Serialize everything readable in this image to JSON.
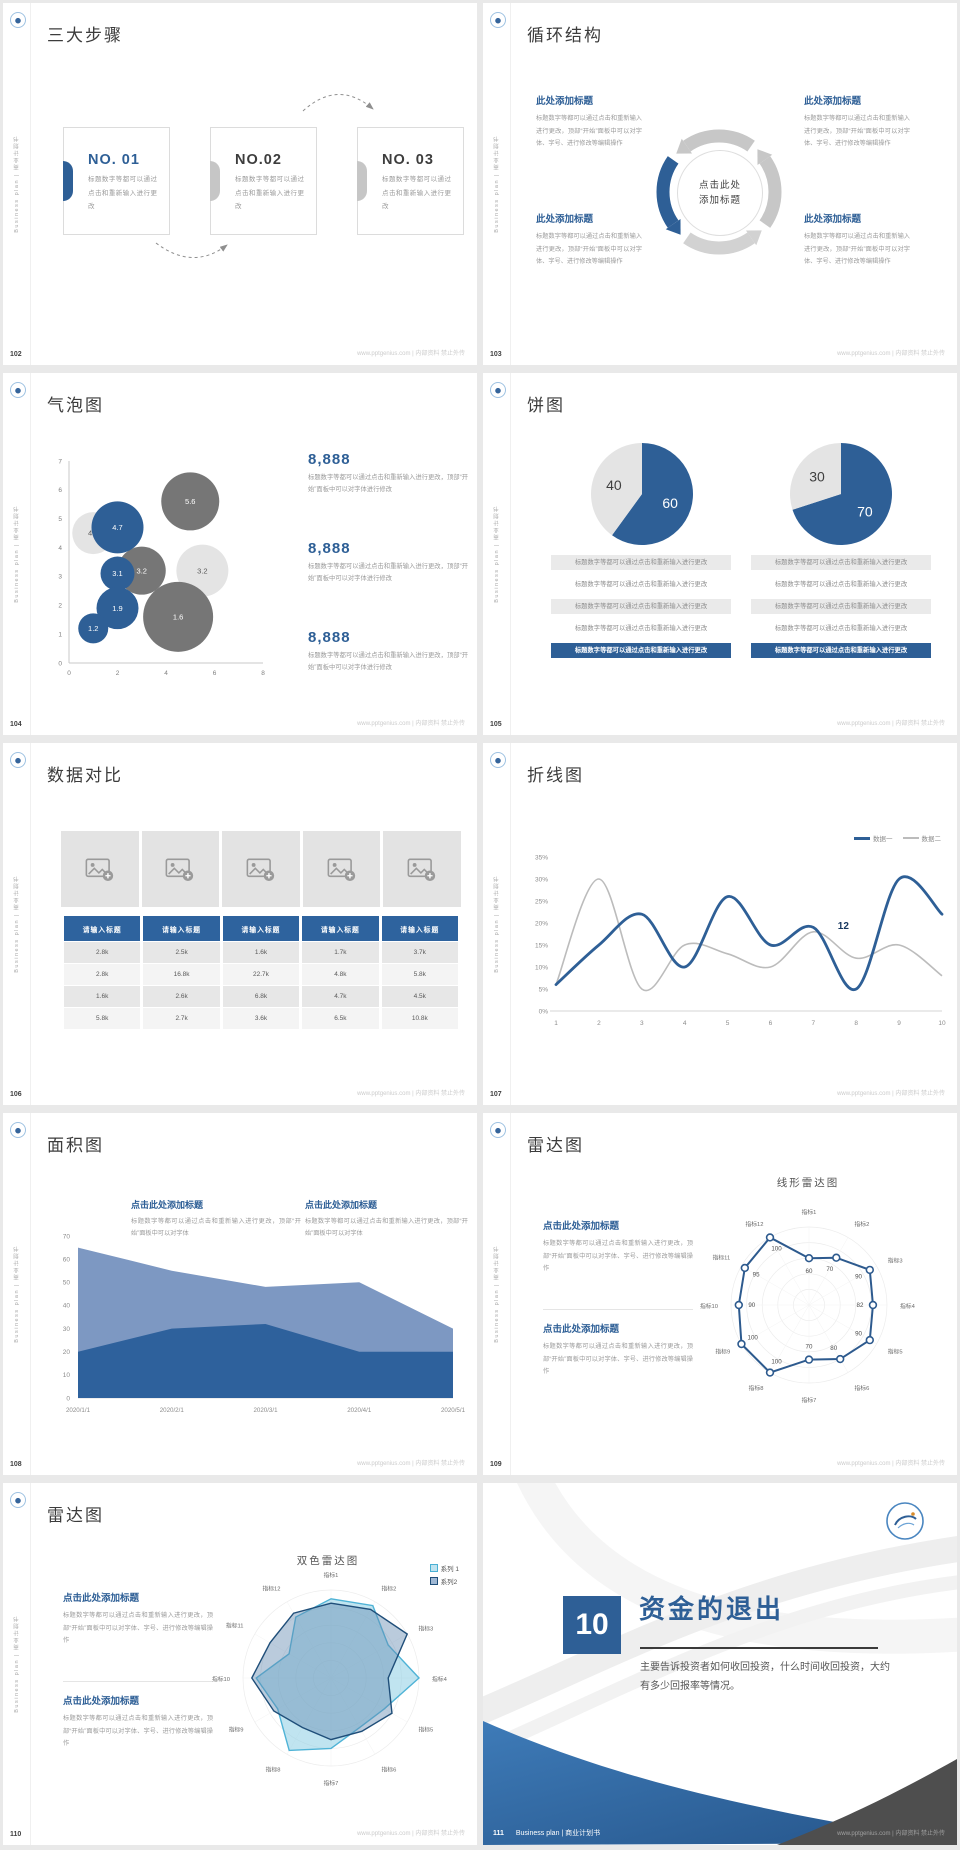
{
  "watermark": "www.pptgenius.com | 内部资料 禁止外传",
  "brand_vertical": "Business plan | 商业计划书",
  "colors": {
    "primary": "#2e5f96",
    "dark_gray": "#767676",
    "light_gray": "#e4e4e4",
    "steel": "#7d98c2",
    "navy": "#1f4e79",
    "cyan": "#4fb3d6"
  },
  "slides": {
    "steps": {
      "page": "102",
      "title": "三大步骤",
      "items": [
        {
          "no": "NO. 01",
          "body": "标题数字等都可以通过点击和重新输入进行更改"
        },
        {
          "no": "NO.02",
          "body": "标题数字等都可以通过点击和重新输入进行更改"
        },
        {
          "no": "NO. 03",
          "body": "标题数字等都可以通过点击和重新输入进行更改"
        }
      ]
    },
    "cycle": {
      "page": "103",
      "title": "循环结构",
      "center_line1": "点击此处",
      "center_line2": "添加标题",
      "blocks": [
        {
          "heading": "此处添加标题",
          "body": "标题数字等都可以通过点击和重新输入进行更改，顶部“开始”面板中可以对字体、字号、进行修改等编辑操作"
        },
        {
          "heading": "此处添加标题",
          "body": "标题数字等都可以通过点击和重新输入进行更改，顶部“开始”面板中可以对字体、字号、进行修改等编辑操作"
        },
        {
          "heading": "此处添加标题",
          "body": "标题数字等都可以通过点击和重新输入进行更改，顶部“开始”面板中可以对字体、字号、进行修改等编辑操作"
        },
        {
          "heading": "此处添加标题",
          "body": "标题数字等都可以通过点击和重新输入进行更改，顶部“开始”面板中可以对字体、字号、进行修改等编辑操作"
        }
      ]
    },
    "bubble": {
      "page": "104",
      "title": "气泡图",
      "stats": [
        {
          "value": "8,888",
          "body": "标题数字等都可以通过点击和重新输入进行更改，顶部“开始”面板中可以对字体进行修改"
        },
        {
          "value": "8,888",
          "body": "标题数字等都可以通过点击和重新输入进行更改，顶部“开始”面板中可以对字体进行修改"
        },
        {
          "value": "8,888",
          "body": "标题数字等都可以通过点击和重新输入进行更改，顶部“开始”面板中可以对字体进行修改"
        }
      ]
    },
    "pie": {
      "page": "105",
      "title": "饼图",
      "row_text": "标题数字等都可以通过点击和重新输入进行更改"
    },
    "compare": {
      "page": "106",
      "title": "数据对比",
      "table": {
        "headers": [
          "请输入标题",
          "请输入标题",
          "请输入标题",
          "请输入标题",
          "请输入标题"
        ],
        "rows": [
          [
            "2.8k",
            "2.5k",
            "1.6k",
            "1.7k",
            "3.7k"
          ],
          [
            "2.8k",
            "16.8k",
            "22.7k",
            "4.8k",
            "5.8k"
          ],
          [
            "1.6k",
            "2.6k",
            "6.8k",
            "4.7k",
            "4.5k"
          ],
          [
            "5.8k",
            "2.7k",
            "3.6k",
            "6.5k",
            "10.8k"
          ]
        ]
      }
    },
    "line": {
      "page": "107",
      "title": "折线图"
    },
    "area": {
      "page": "108",
      "title": "面积图",
      "blocks": [
        {
          "heading": "点击此处添加标题",
          "body": "标题数字等都可以通过点击和重新输入进行更改，顶部“开始”面板中可以对字体"
        },
        {
          "heading": "点击此处添加标题",
          "body": "标题数字等都可以通过点击和重新输入进行更改，顶部“开始”面板中可以对字体"
        }
      ]
    },
    "radar_line": {
      "page": "109",
      "title": "雷达图",
      "blocks": [
        {
          "heading": "点击此处添加标题",
          "body": "标题数字等都可以通过点击和重新输入进行更改，顶部“开始”面板中可以对字体、字号、进行修改等编辑操作"
        },
        {
          "heading": "点击此处添加标题",
          "body": "标题数字等都可以通过点击和重新输入进行更改，顶部“开始”面板中可以对字体、字号、进行修改等编辑操作"
        }
      ]
    },
    "radar_dual": {
      "page": "110",
      "title": "雷达图",
      "blocks": [
        {
          "heading": "点击此处添加标题",
          "body": "标题数字等都可以通过点击和重新输入进行更改，顶部“开始”面板中可以对字体、字号、进行修改等编辑操作"
        },
        {
          "heading": "点击此处添加标题",
          "body": "标题数字等都可以通过点击和重新输入进行更改，顶部“开始”面板中可以对字体、字号、进行修改等编辑操作"
        }
      ]
    },
    "section": {
      "page": "111",
      "number": "10",
      "title": "资金的退出",
      "body": "主要告诉投资者如何收回投资，什么时间收回投资，大约有多少回报率等情况。",
      "brand": "Business plan | 商业计划书"
    }
  },
  "chart_data": [
    {
      "id": "bubble",
      "type": "scatter",
      "title": "气泡图",
      "xlim": [
        0,
        8
      ],
      "ylim": [
        0,
        7
      ],
      "xticks": [
        0,
        2,
        4,
        6,
        8
      ],
      "yticks": [
        0,
        1,
        2,
        3,
        4,
        5,
        6,
        7
      ],
      "points": [
        {
          "x": 1,
          "y": 4.5,
          "label": "4.5",
          "r": 21,
          "color": "light"
        },
        {
          "x": 5,
          "y": 5.6,
          "label": "5.6",
          "r": 29,
          "color": "dark"
        },
        {
          "x": 3,
          "y": 3.2,
          "label": "3.2",
          "r": 24,
          "color": "dark"
        },
        {
          "x": 5.5,
          "y": 3.2,
          "label": "3.2",
          "r": 26,
          "color": "light"
        },
        {
          "x": 4.5,
          "y": 1.6,
          "label": "1.6",
          "r": 35,
          "color": "dark"
        },
        {
          "x": 2,
          "y": 4.7,
          "label": "4.7",
          "r": 26,
          "color": "blue"
        },
        {
          "x": 2,
          "y": 3.1,
          "label": "3.1",
          "r": 17,
          "color": "blue"
        },
        {
          "x": 2,
          "y": 1.9,
          "label": "1.9",
          "r": 21,
          "color": "blue"
        },
        {
          "x": 1,
          "y": 1.2,
          "label": "1.2",
          "r": 15,
          "color": "blue"
        }
      ]
    },
    {
      "id": "pie1",
      "type": "pie",
      "slices": [
        {
          "label": "60",
          "value": 60,
          "color": "blue"
        },
        {
          "label": "40",
          "value": 40,
          "color": "light"
        }
      ]
    },
    {
      "id": "pie2",
      "type": "pie",
      "slices": [
        {
          "label": "70",
          "value": 70,
          "color": "blue"
        },
        {
          "label": "30",
          "value": 30,
          "color": "light"
        }
      ]
    },
    {
      "id": "line",
      "type": "line",
      "x": [
        1,
        2,
        3,
        4,
        5,
        6,
        7,
        8,
        9,
        10
      ],
      "ylim": [
        0,
        35
      ],
      "yticks": [
        "0%",
        "5%",
        "10%",
        "15%",
        "20%",
        "25%",
        "30%",
        "35%"
      ],
      "legend_position": "top-right",
      "series": [
        {
          "name": "数据一",
          "color": "blue",
          "values": [
            6,
            15,
            22,
            10,
            26,
            15,
            19,
            5,
            30,
            22
          ]
        },
        {
          "name": "数据二",
          "color": "gray",
          "values": [
            6,
            30,
            5,
            15,
            13,
            10,
            18,
            12,
            15,
            8
          ]
        }
      ],
      "annotation": {
        "x": 7.7,
        "y": 18.6,
        "text": "12"
      }
    },
    {
      "id": "area",
      "type": "area",
      "categories": [
        "2020/1/1",
        "2020/2/1",
        "2020/3/1",
        "2020/4/1",
        "2020/5/1"
      ],
      "ylim": [
        0,
        70
      ],
      "yticks": [
        0,
        10,
        20,
        30,
        40,
        50,
        60,
        70
      ],
      "series": [
        {
          "color": "steel",
          "values": [
            65,
            55,
            48,
            50,
            30
          ]
        },
        {
          "color": "blue",
          "values": [
            20,
            30,
            32,
            20,
            20
          ]
        }
      ]
    },
    {
      "id": "radar1",
      "type": "radar",
      "title": "线形雷达图",
      "rmax": 100,
      "categories": [
        "指标1",
        "指标2",
        "指标3",
        "指标4",
        "指标5",
        "指标6",
        "指标7",
        "指标8",
        "指标9",
        "指标10",
        "指标11",
        "指标12"
      ],
      "series": [
        {
          "color": "blue",
          "fill": false,
          "markers": true,
          "value_labels": true,
          "values": [
            60,
            70,
            90,
            82,
            90,
            80,
            70,
            100,
            100,
            90,
            95,
            100
          ]
        }
      ]
    },
    {
      "id": "radar2",
      "type": "radar",
      "title": "双色雷达图",
      "rmax": 100,
      "categories": [
        "指标1",
        "指标2",
        "指标3",
        "指标4",
        "指标5",
        "指标6",
        "指标7",
        "指标8",
        "指标9",
        "指标10",
        "指标11",
        "指标12"
      ],
      "legend": [
        "系列 1",
        "系列2"
      ],
      "series": [
        {
          "name": "系列 1",
          "color": "cyan",
          "fill": true,
          "values": [
            90,
            95,
            75,
            100,
            70,
            65,
            80,
            95,
            70,
            85,
            55,
            80
          ]
        },
        {
          "name": "系列2",
          "color": "navy",
          "fill": true,
          "values": [
            85,
            90,
            100,
            65,
            80,
            70,
            70,
            65,
            75,
            90,
            80,
            85
          ]
        }
      ]
    }
  ]
}
